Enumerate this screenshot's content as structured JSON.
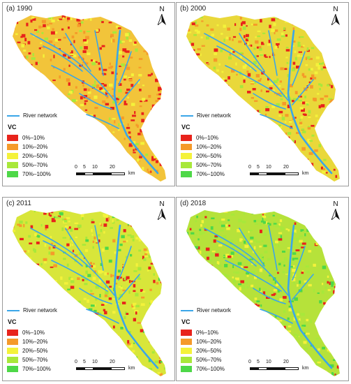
{
  "panels": [
    {
      "title": "(a) 1990",
      "north": "N"
    },
    {
      "title": "(b) 2000",
      "north": "N"
    },
    {
      "title": "(c) 2011",
      "north": "N"
    },
    {
      "title": "(d) 2018",
      "north": "N"
    }
  ],
  "legend": {
    "river_label": "River network",
    "vc_title": "VC",
    "classes": [
      {
        "label": "0%–10%",
        "color": "#e8231b"
      },
      {
        "label": "10%–20%",
        "color": "#f59a2a"
      },
      {
        "label": "20%–50%",
        "color": "#f4f23a"
      },
      {
        "label": "50%–70%",
        "color": "#a8e83a"
      },
      {
        "label": "70%–100%",
        "color": "#4ed848"
      }
    ]
  },
  "scale_bar": {
    "ticks": [
      "0",
      "5",
      "10",
      "20"
    ],
    "unit": "km"
  },
  "colors": {
    "river": "#3aa6e8",
    "frame": "#9a9a9a"
  }
}
